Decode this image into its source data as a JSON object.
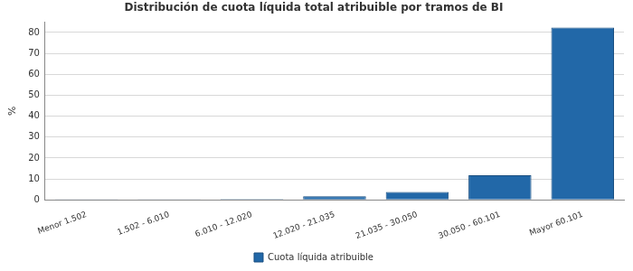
{
  "chart_data": {
    "type": "bar",
    "title": "Distribución de cuota líquida total atribuible por tramos de BI",
    "y_label": "%",
    "categories": [
      "Menor 1.502",
      "1.502 - 6.010",
      "6.010 - 12.020",
      "12.020 - 21.035",
      "21.035 - 30.050",
      "30.050 - 60.101",
      "Mayor 60.101"
    ],
    "series": [
      {
        "name": "Cuota líquida atribuible",
        "color": "#2268a8",
        "values": [
          0.05,
          0.1,
          0.4,
          1.7,
          3.8,
          11.8,
          82.4
        ]
      }
    ],
    "ylim": [
      0,
      85
    ],
    "yticks": [
      0,
      10,
      20,
      30,
      40,
      50,
      60,
      70,
      80
    ],
    "grid": true,
    "legend": "bottom"
  }
}
